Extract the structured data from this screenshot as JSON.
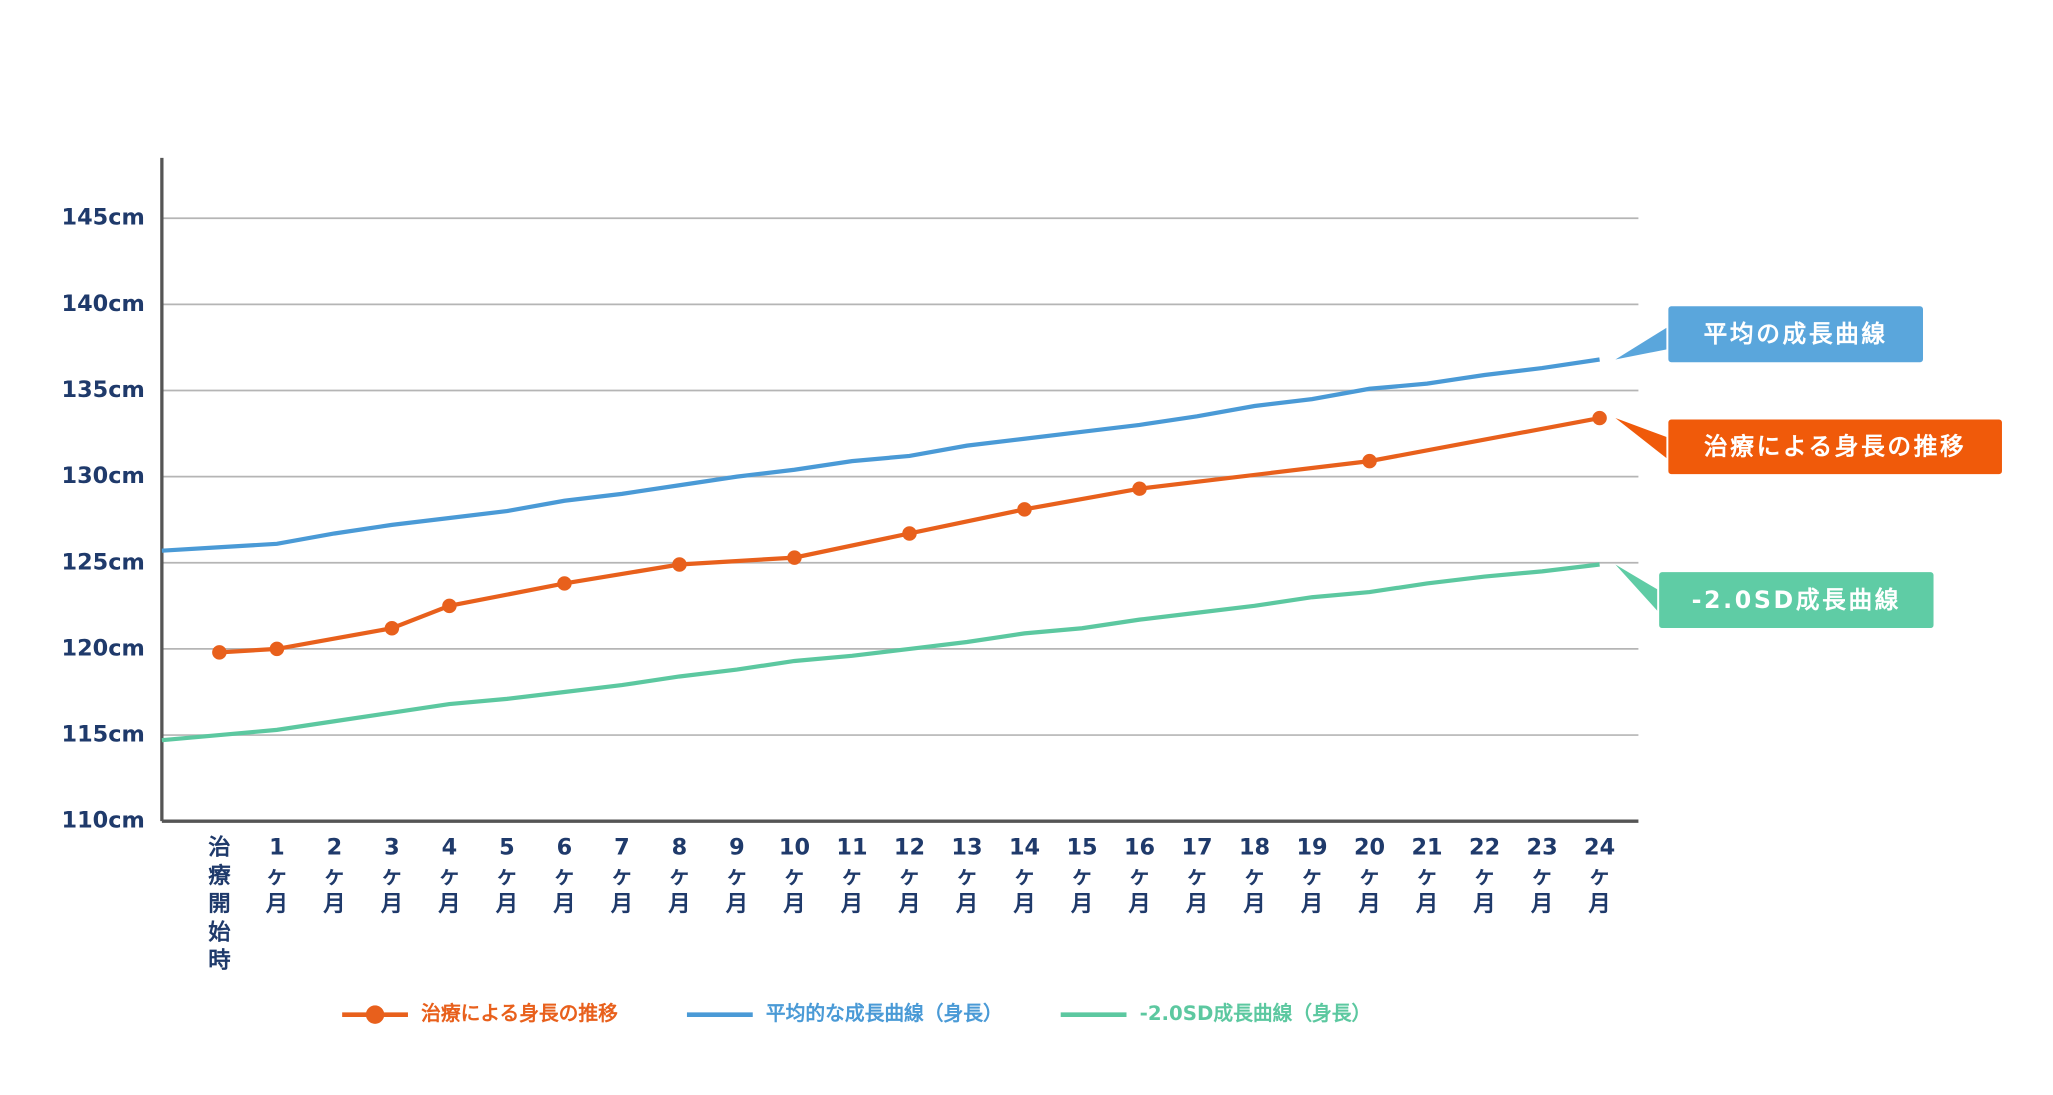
{
  "chart_data": {
    "type": "line",
    "categories": [
      null,
      "治療開始時",
      "1ヶ月",
      "2ヶ月",
      "3ヶ月",
      "4ヶ月",
      "5ヶ月",
      "6ヶ月",
      "7ヶ月",
      "8ヶ月",
      "9ヶ月",
      "10ヶ月",
      "11ヶ月",
      "12ヶ月",
      "13ヶ月",
      "14ヶ月",
      "15ヶ月",
      "16ヶ月",
      "17ヶ月",
      "18ヶ月",
      "19ヶ月",
      "20ヶ月",
      "21ヶ月",
      "22ヶ月",
      "23ヶ月",
      "24ヶ月"
    ],
    "series": [
      {
        "name": "治療による身長の推移",
        "color": "#e8601c",
        "markers": true,
        "connect_gaps": true,
        "values": [
          null,
          119.8,
          120.0,
          null,
          121.2,
          122.5,
          null,
          123.8,
          null,
          124.9,
          null,
          125.3,
          null,
          126.7,
          null,
          128.1,
          null,
          129.3,
          null,
          null,
          null,
          130.9,
          null,
          null,
          null,
          133.4
        ]
      },
      {
        "name": "平均的な成長曲線（身長）",
        "color": "#4a9ad6",
        "values": [
          125.7,
          125.9,
          126.1,
          126.7,
          127.2,
          127.6,
          128.0,
          128.6,
          129.0,
          129.5,
          130.0,
          130.4,
          130.9,
          131.2,
          131.8,
          132.2,
          132.6,
          133.0,
          133.5,
          134.1,
          134.5,
          135.1,
          135.4,
          135.9,
          136.3,
          136.8
        ]
      },
      {
        "name": "-2.0SD成長曲線（身長）",
        "color": "#5cc8a0",
        "values": [
          114.7,
          115.0,
          115.3,
          115.8,
          116.3,
          116.8,
          117.1,
          117.5,
          117.9,
          118.4,
          118.8,
          119.3,
          119.6,
          120.0,
          120.4,
          120.9,
          121.2,
          121.7,
          122.1,
          122.5,
          123.0,
          123.3,
          123.8,
          124.2,
          124.5,
          124.9
        ]
      }
    ],
    "annotations": [
      {
        "text": "治療による身長の推移",
        "color": "#f05a0a"
      },
      {
        "text": "平均の成長曲線",
        "color": "#5aa6dc"
      },
      {
        "text": "-2.0SD成長曲線",
        "color": "#5fcca5"
      }
    ],
    "ylim": [
      110,
      148.5
    ],
    "yticks": [
      {
        "value": 110,
        "label": "110cm"
      },
      {
        "value": 115,
        "label": "115cm"
      },
      {
        "value": 120,
        "label": "120cm"
      },
      {
        "value": 125,
        "label": "125cm"
      },
      {
        "value": 130,
        "label": "130cm"
      },
      {
        "value": 135,
        "label": "135cm"
      },
      {
        "value": 140,
        "label": "140cm"
      },
      {
        "value": 145,
        "label": "145cm"
      }
    ],
    "grid": true,
    "legend": "bottom"
  }
}
